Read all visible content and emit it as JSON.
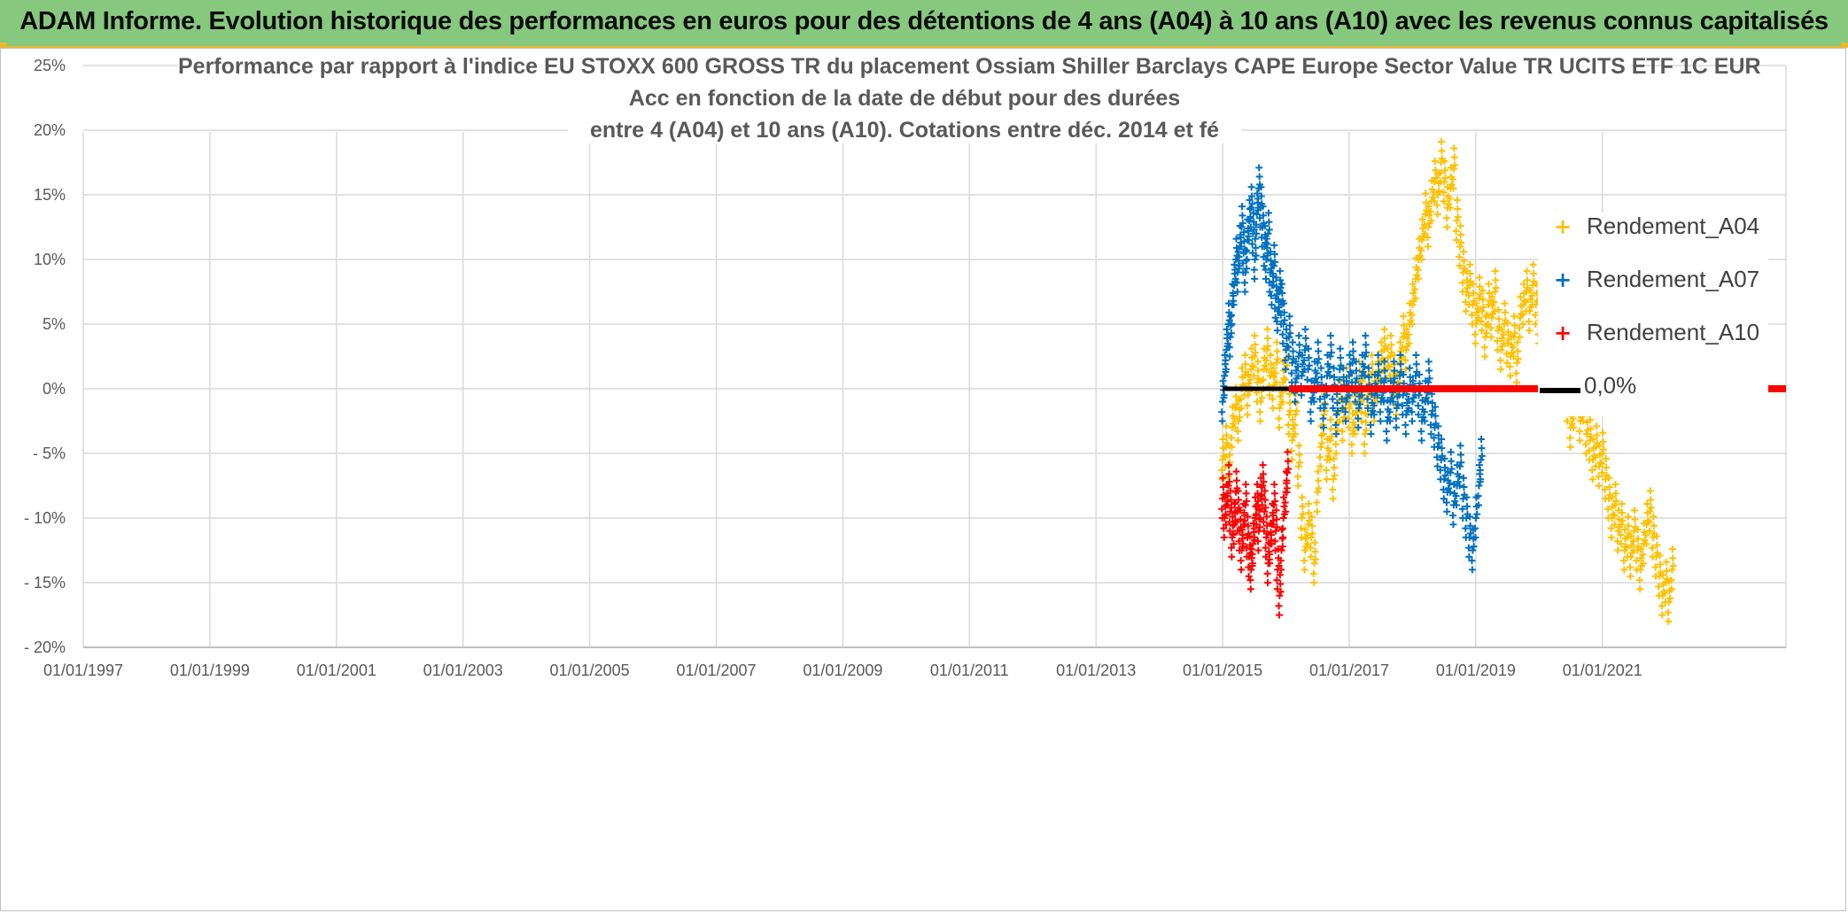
{
  "banner": {
    "title": "ADAM Informe. Evolution historique des performances en euros pour des détentions de 4 ans (A04) à 10 ans (A10) avec les revenus connus capitalisés"
  },
  "colors": {
    "banner_bg": "#86c97e",
    "banner_accent": "#e8b92c",
    "A04": "#ffc000",
    "A07": "#0070c0",
    "A10": "#ff0000",
    "zero": "#000000",
    "grid": "#d9d9d9",
    "axis_text": "#595959"
  },
  "chart_data": {
    "type": "scatter",
    "title_lines": [
      "Performance par rapport à l'indice EU STOXX 600 GROSS TR  du placement Ossiam Shiller Barclays CAPE Europe Sector Value TR UCITS ETF 1C EUR",
      "Acc en fonction de la date de début pour des durées",
      "entre 4 (A04) et 10 ans (A10). Cotations entre déc. 2014 et fé"
    ],
    "x_tick_labels": [
      "01/01/1997",
      "01/01/1999",
      "01/01/2001",
      "01/01/2003",
      "01/01/2005",
      "01/01/2007",
      "01/01/2009",
      "01/01/2011",
      "01/01/2013",
      "01/01/2015",
      "01/01/2017",
      "01/01/2019",
      "01/01/2021"
    ],
    "xlim": [
      1997.0,
      2023.9
    ],
    "y_tick_labels": [
      "25%",
      "20%",
      "15%",
      "10%",
      "5%",
      "0%",
      "- 5%",
      "- 10%",
      "- 15%",
      "- 20%"
    ],
    "y_tick_values": [
      25,
      20,
      15,
      10,
      5,
      0,
      -5,
      -10,
      -15,
      -20
    ],
    "ylim": [
      -20,
      25
    ],
    "legend_position": "top-right",
    "legend": [
      "Rendement_A04",
      "Rendement_A07",
      "Rendement_A10",
      "0,0%"
    ],
    "series": [
      {
        "name": "Rendement_A04",
        "marker": "+",
        "points": [
          [
            2015.0,
            -5.5
          ],
          [
            2015.05,
            -4.5
          ],
          [
            2015.1,
            -6.0
          ],
          [
            2015.15,
            -3.0
          ],
          [
            2015.2,
            -1.5
          ],
          [
            2015.25,
            -2.5
          ],
          [
            2015.3,
            0.0
          ],
          [
            2015.35,
            1.0
          ],
          [
            2015.4,
            -0.5
          ],
          [
            2015.45,
            1.5
          ],
          [
            2015.5,
            2.5
          ],
          [
            2015.55,
            0.5
          ],
          [
            2015.6,
            -1.0
          ],
          [
            2015.65,
            1.5
          ],
          [
            2015.7,
            3.0
          ],
          [
            2015.75,
            1.0
          ],
          [
            2015.8,
            0.0
          ],
          [
            2015.85,
            2.0
          ],
          [
            2015.9,
            -1.5
          ],
          [
            2015.95,
            0.5
          ],
          [
            2016.0,
            1.5
          ],
          [
            2016.05,
            -2.0
          ],
          [
            2016.1,
            -4.0
          ],
          [
            2016.15,
            -2.0
          ],
          [
            2016.2,
            -6.0
          ],
          [
            2016.25,
            -10.0
          ],
          [
            2016.3,
            -12.5
          ],
          [
            2016.35,
            -10.5
          ],
          [
            2016.4,
            -11.5
          ],
          [
            2016.45,
            -13.5
          ],
          [
            2016.5,
            -8.0
          ],
          [
            2016.55,
            -4.5
          ],
          [
            2016.6,
            -2.0
          ],
          [
            2016.65,
            -5.5
          ],
          [
            2016.7,
            -4.0
          ],
          [
            2016.75,
            -7.0
          ],
          [
            2016.8,
            -3.5
          ],
          [
            2016.85,
            -1.0
          ],
          [
            2016.9,
            -2.5
          ],
          [
            2016.95,
            0.0
          ],
          [
            2017.0,
            -1.5
          ],
          [
            2017.05,
            -3.5
          ],
          [
            2017.1,
            -2.0
          ],
          [
            2017.15,
            0.5
          ],
          [
            2017.2,
            -1.0
          ],
          [
            2017.25,
            -3.5
          ],
          [
            2017.3,
            -0.5
          ],
          [
            2017.35,
            1.0
          ],
          [
            2017.4,
            -1.0
          ],
          [
            2017.45,
            0.5
          ],
          [
            2017.5,
            2.0
          ],
          [
            2017.55,
            3.0
          ],
          [
            2017.6,
            1.5
          ],
          [
            2017.65,
            2.5
          ],
          [
            2017.7,
            1.0
          ],
          [
            2017.75,
            -0.5
          ],
          [
            2017.8,
            2.0
          ],
          [
            2017.85,
            4.0
          ],
          [
            2017.9,
            3.0
          ],
          [
            2017.95,
            5.0
          ],
          [
            2018.0,
            6.5
          ],
          [
            2018.05,
            8.5
          ],
          [
            2018.1,
            10.0
          ],
          [
            2018.15,
            11.5
          ],
          [
            2018.2,
            13.5
          ],
          [
            2018.25,
            12.5
          ],
          [
            2018.3,
            14.5
          ],
          [
            2018.35,
            16.0
          ],
          [
            2018.4,
            15.0
          ],
          [
            2018.45,
            17.5
          ],
          [
            2018.5,
            16.0
          ],
          [
            2018.55,
            14.0
          ],
          [
            2018.6,
            15.5
          ],
          [
            2018.65,
            17.0
          ],
          [
            2018.7,
            13.0
          ],
          [
            2018.75,
            11.0
          ],
          [
            2018.8,
            9.0
          ],
          [
            2018.85,
            7.5
          ],
          [
            2018.9,
            8.0
          ],
          [
            2018.95,
            6.5
          ],
          [
            2019.0,
            5.0
          ],
          [
            2019.05,
            7.0
          ],
          [
            2019.1,
            6.0
          ],
          [
            2019.15,
            4.0
          ],
          [
            2019.2,
            6.5
          ],
          [
            2019.25,
            5.5
          ],
          [
            2019.3,
            7.5
          ],
          [
            2019.35,
            4.5
          ],
          [
            2019.4,
            3.0
          ],
          [
            2019.45,
            5.0
          ],
          [
            2019.5,
            3.5
          ],
          [
            2019.55,
            2.5
          ],
          [
            2019.6,
            4.0
          ],
          [
            2019.65,
            2.0
          ],
          [
            2019.7,
            5.5
          ],
          [
            2019.75,
            6.5
          ],
          [
            2019.8,
            7.5
          ],
          [
            2019.85,
            6.0
          ],
          [
            2019.9,
            8.0
          ],
          [
            2019.95,
            6.5
          ],
          [
            2020.0,
            5.0
          ],
          [
            2020.05,
            7.0
          ],
          [
            2020.1,
            5.5
          ],
          [
            2020.15,
            4.0
          ],
          [
            2020.2,
            6.0
          ],
          [
            2020.25,
            3.5
          ],
          [
            2020.3,
            0.5
          ],
          [
            2020.35,
            2.5
          ],
          [
            2020.4,
            1.0
          ],
          [
            2020.45,
            -1.0
          ],
          [
            2020.5,
            -3.0
          ],
          [
            2020.55,
            -1.5
          ],
          [
            2020.6,
            0.0
          ],
          [
            2020.65,
            -2.5
          ],
          [
            2020.7,
            -1.0
          ],
          [
            2020.75,
            -3.5
          ],
          [
            2020.8,
            -4.0
          ],
          [
            2020.85,
            -5.5
          ],
          [
            2020.9,
            -4.5
          ],
          [
            2020.95,
            -6.0
          ],
          [
            2021.0,
            -5.0
          ],
          [
            2021.05,
            -7.0
          ],
          [
            2021.1,
            -8.5
          ],
          [
            2021.15,
            -10.0
          ],
          [
            2021.2,
            -9.0
          ],
          [
            2021.25,
            -11.0
          ],
          [
            2021.3,
            -10.5
          ],
          [
            2021.35,
            -12.5
          ],
          [
            2021.4,
            -11.5
          ],
          [
            2021.45,
            -13.0
          ],
          [
            2021.5,
            -11.0
          ],
          [
            2021.55,
            -12.5
          ],
          [
            2021.6,
            -14.0
          ],
          [
            2021.65,
            -12.0
          ],
          [
            2021.7,
            -10.5
          ],
          [
            2021.75,
            -9.5
          ],
          [
            2021.8,
            -11.5
          ],
          [
            2021.85,
            -13.0
          ],
          [
            2021.9,
            -14.5
          ],
          [
            2021.95,
            -16.0
          ],
          [
            2022.0,
            -15.0
          ],
          [
            2022.05,
            -16.5
          ],
          [
            2022.1,
            -14.0
          ]
        ]
      },
      {
        "name": "Rendement_A07",
        "marker": "+",
        "points": [
          [
            2015.0,
            -1.0
          ],
          [
            2015.03,
            1.0
          ],
          [
            2015.06,
            3.0
          ],
          [
            2015.09,
            5.0
          ],
          [
            2015.12,
            4.0
          ],
          [
            2015.15,
            6.5
          ],
          [
            2015.18,
            8.0
          ],
          [
            2015.21,
            10.0
          ],
          [
            2015.24,
            9.0
          ],
          [
            2015.27,
            11.0
          ],
          [
            2015.3,
            12.5
          ],
          [
            2015.33,
            10.5
          ],
          [
            2015.36,
            9.0
          ],
          [
            2015.39,
            11.5
          ],
          [
            2015.42,
            13.0
          ],
          [
            2015.45,
            14.0
          ],
          [
            2015.48,
            12.0
          ],
          [
            2015.51,
            10.0
          ],
          [
            2015.54,
            13.5
          ],
          [
            2015.57,
            15.5
          ],
          [
            2015.6,
            14.0
          ],
          [
            2015.63,
            12.5
          ],
          [
            2015.66,
            11.0
          ],
          [
            2015.69,
            10.0
          ],
          [
            2015.72,
            12.0
          ],
          [
            2015.75,
            9.0
          ],
          [
            2015.78,
            8.0
          ],
          [
            2015.81,
            9.5
          ],
          [
            2015.84,
            7.0
          ],
          [
            2015.87,
            6.0
          ],
          [
            2015.9,
            7.5
          ],
          [
            2015.93,
            6.5
          ],
          [
            2015.96,
            5.0
          ],
          [
            2016.0,
            3.0
          ],
          [
            2016.05,
            4.0
          ],
          [
            2016.1,
            2.0
          ],
          [
            2016.15,
            0.5
          ],
          [
            2016.2,
            2.5
          ],
          [
            2016.25,
            1.0
          ],
          [
            2016.3,
            3.0
          ],
          [
            2016.35,
            1.5
          ],
          [
            2016.4,
            -1.0
          ],
          [
            2016.45,
            0.5
          ],
          [
            2016.5,
            2.0
          ],
          [
            2016.55,
            0.0
          ],
          [
            2016.6,
            -1.5
          ],
          [
            2016.65,
            1.0
          ],
          [
            2016.7,
            2.5
          ],
          [
            2016.75,
            0.0
          ],
          [
            2016.8,
            -2.0
          ],
          [
            2016.85,
            1.5
          ],
          [
            2016.9,
            0.0
          ],
          [
            2016.95,
            -1.0
          ],
          [
            2017.0,
            1.0
          ],
          [
            2017.05,
            2.0
          ],
          [
            2017.1,
            0.5
          ],
          [
            2017.15,
            -1.5
          ],
          [
            2017.2,
            1.0
          ],
          [
            2017.25,
            2.5
          ],
          [
            2017.3,
            0.0
          ],
          [
            2017.35,
            -2.0
          ],
          [
            2017.4,
            -0.5
          ],
          [
            2017.45,
            1.0
          ],
          [
            2017.5,
            -1.0
          ],
          [
            2017.55,
            0.5
          ],
          [
            2017.6,
            -2.5
          ],
          [
            2017.65,
            -1.0
          ],
          [
            2017.7,
            0.5
          ],
          [
            2017.75,
            -1.5
          ],
          [
            2017.8,
            1.0
          ],
          [
            2017.85,
            -0.5
          ],
          [
            2017.9,
            -2.0
          ],
          [
            2017.95,
            0.0
          ],
          [
            2018.0,
            -1.0
          ],
          [
            2018.05,
            1.0
          ],
          [
            2018.1,
            -0.5
          ],
          [
            2018.15,
            -2.5
          ],
          [
            2018.2,
            -1.0
          ],
          [
            2018.25,
            0.5
          ],
          [
            2018.3,
            -2.0
          ],
          [
            2018.35,
            -3.0
          ],
          [
            2018.4,
            -4.5
          ],
          [
            2018.45,
            -5.5
          ],
          [
            2018.5,
            -7.0
          ],
          [
            2018.55,
            -8.0
          ],
          [
            2018.6,
            -6.5
          ],
          [
            2018.65,
            -9.0
          ],
          [
            2018.7,
            -7.5
          ],
          [
            2018.75,
            -6.0
          ],
          [
            2018.8,
            -8.5
          ],
          [
            2018.85,
            -10.0
          ],
          [
            2018.9,
            -11.5
          ],
          [
            2018.95,
            -12.5
          ],
          [
            2019.0,
            -10.0
          ],
          [
            2019.05,
            -7.5
          ],
          [
            2019.08,
            -5.5
          ]
        ]
      },
      {
        "name": "Rendement_A10",
        "marker": "+",
        "points": [
          [
            2015.0,
            -8.5
          ],
          [
            2015.03,
            -10.0
          ],
          [
            2015.06,
            -9.0
          ],
          [
            2015.09,
            -7.5
          ],
          [
            2015.12,
            -9.5
          ],
          [
            2015.15,
            -11.5
          ],
          [
            2015.18,
            -10.5
          ],
          [
            2015.21,
            -8.0
          ],
          [
            2015.24,
            -9.5
          ],
          [
            2015.27,
            -11.0
          ],
          [
            2015.3,
            -12.5
          ],
          [
            2015.33,
            -10.5
          ],
          [
            2015.36,
            -9.0
          ],
          [
            2015.39,
            -11.5
          ],
          [
            2015.42,
            -13.0
          ],
          [
            2015.45,
            -14.0
          ],
          [
            2015.48,
            -12.0
          ],
          [
            2015.51,
            -10.0
          ],
          [
            2015.54,
            -9.0
          ],
          [
            2015.57,
            -11.0
          ],
          [
            2015.6,
            -8.5
          ],
          [
            2015.63,
            -7.5
          ],
          [
            2015.66,
            -9.5
          ],
          [
            2015.69,
            -11.5
          ],
          [
            2015.72,
            -13.5
          ],
          [
            2015.75,
            -12.0
          ],
          [
            2015.78,
            -10.5
          ],
          [
            2015.81,
            -9.0
          ],
          [
            2015.84,
            -11.0
          ],
          [
            2015.87,
            -14.0
          ],
          [
            2015.9,
            -16.0
          ],
          [
            2015.93,
            -12.5
          ],
          [
            2015.96,
            -10.0
          ],
          [
            2016.0,
            -8.0
          ],
          [
            2016.02,
            -6.5
          ]
        ]
      }
    ],
    "zero_line": {
      "name": "0,0%",
      "value": 0,
      "black_segment_x": [
        2015.0,
        2016.05
      ],
      "red_segment_x": [
        2016.05,
        2023.9
      ]
    }
  }
}
